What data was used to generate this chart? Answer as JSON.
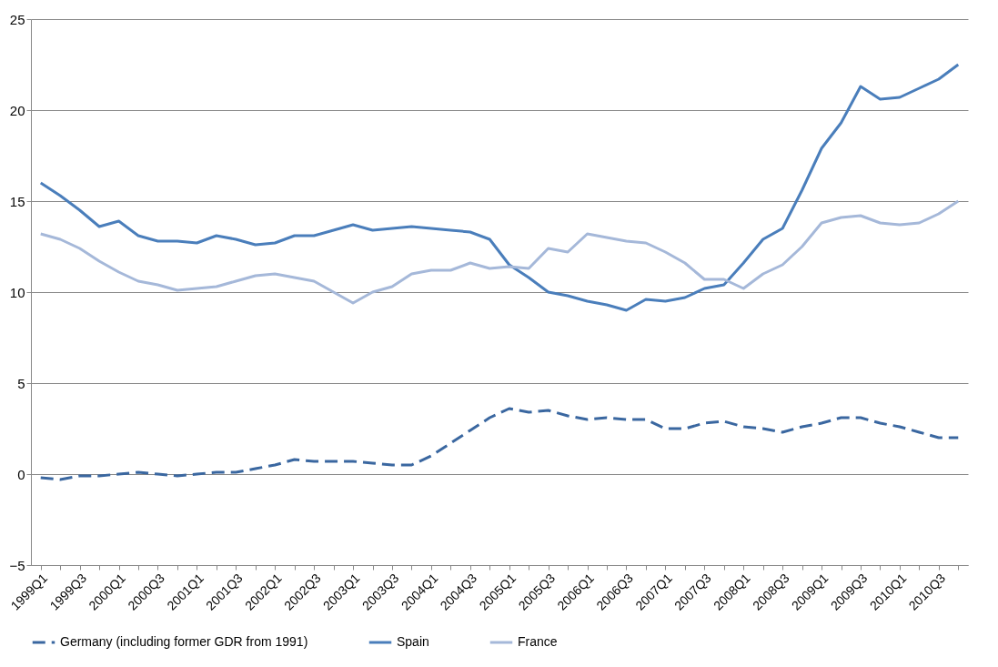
{
  "chart_data": {
    "type": "line",
    "categories": [
      "1999Q1",
      null,
      "1999Q3",
      null,
      "2000Q1",
      null,
      "2000Q3",
      null,
      "2001Q1",
      null,
      "2001Q3",
      null,
      "2002Q1",
      null,
      "2002Q3",
      null,
      "2003Q1",
      null,
      "2003Q3",
      null,
      "2004Q1",
      null,
      "2004Q3",
      null,
      "2005Q1",
      null,
      "2005Q3",
      null,
      "2006Q1",
      null,
      "2006Q3",
      null,
      "2007Q1",
      null,
      "2007Q3",
      null,
      "2008Q1",
      null,
      "2008Q3",
      null,
      "2009Q1",
      null,
      "2009Q3",
      null,
      "2010Q1",
      null,
      "2010Q3",
      null
    ],
    "series": [
      {
        "name": "Germany (including former GDR from 1991)",
        "color": "#3a67a0",
        "line_style": "dashed",
        "values": [
          -0.2,
          -0.3,
          -0.1,
          -0.1,
          0.0,
          0.1,
          0.0,
          -0.1,
          0.0,
          0.1,
          0.1,
          0.3,
          0.5,
          0.8,
          0.7,
          0.7,
          0.7,
          0.6,
          0.5,
          0.5,
          1.0,
          1.7,
          2.4,
          3.1,
          3.6,
          3.4,
          3.5,
          3.2,
          3.0,
          3.1,
          3.0,
          3.0,
          2.5,
          2.5,
          2.8,
          2.9,
          2.6,
          2.5,
          2.3,
          2.6,
          2.8,
          3.1,
          3.1,
          2.8,
          2.6,
          2.3,
          2.0,
          2.0
        ]
      },
      {
        "name": "Spain",
        "color": "#4a7ebb",
        "line_style": "solid",
        "values": [
          16.0,
          15.3,
          14.5,
          13.6,
          13.9,
          13.1,
          12.8,
          12.8,
          12.7,
          13.1,
          12.9,
          12.6,
          12.7,
          13.1,
          13.1,
          13.4,
          13.7,
          13.4,
          13.5,
          13.6,
          13.5,
          13.4,
          13.3,
          12.9,
          11.5,
          10.8,
          10.0,
          9.8,
          9.5,
          9.3,
          9.0,
          9.6,
          9.5,
          9.7,
          10.2,
          10.4,
          11.6,
          12.9,
          13.5,
          15.6,
          17.9,
          19.3,
          21.3,
          20.6,
          20.7,
          21.2,
          21.7,
          22.5
        ]
      },
      {
        "name": "France",
        "color": "#a5b8d9",
        "line_style": "solid",
        "values": [
          13.2,
          12.9,
          12.4,
          11.7,
          11.1,
          10.6,
          10.4,
          10.1,
          10.2,
          10.3,
          10.6,
          10.9,
          11.0,
          10.8,
          10.6,
          10.0,
          9.4,
          10.0,
          10.3,
          11.0,
          11.2,
          11.2,
          11.6,
          11.3,
          11.4,
          11.3,
          12.4,
          12.2,
          13.2,
          13.0,
          12.8,
          12.7,
          12.2,
          11.6,
          10.7,
          10.7,
          10.2,
          11.0,
          11.5,
          12.5,
          13.8,
          14.1,
          14.2,
          13.8,
          13.7,
          13.8,
          14.3,
          15.0
        ]
      }
    ],
    "ylim": [
      -5,
      25
    ],
    "yticks": [
      -5,
      0,
      5,
      10,
      15,
      20,
      25
    ],
    "grid": "y",
    "legend": "bottom",
    "marker": "none"
  }
}
